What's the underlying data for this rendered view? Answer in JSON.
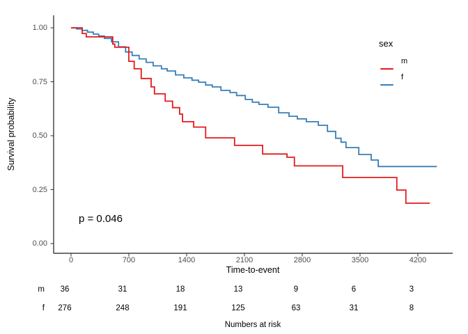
{
  "chart_data": {
    "type": "line",
    "subtype": "kaplan-meier-step",
    "title": "",
    "xlabel": "Time-to-event",
    "ylabel": "Survival probability",
    "x_ticks": [
      0,
      700,
      1400,
      2100,
      2800,
      3500,
      4200
    ],
    "y_ticks": [
      {
        "value": 1.0,
        "label": "1.00"
      },
      {
        "value": 0.75,
        "label": "0.75"
      },
      {
        "value": 0.5,
        "label": "0.50"
      },
      {
        "value": 0.25,
        "label": "0.25"
      },
      {
        "value": 0.0,
        "label": "0.00"
      }
    ],
    "xlim": [
      0,
      4600
    ],
    "ylim": [
      0,
      1
    ],
    "grid": false,
    "annotation": "p = 0.046",
    "legend": {
      "title": "sex",
      "position": "right",
      "entries": [
        {
          "label": "m",
          "color": "#E41A1C"
        },
        {
          "label": "f",
          "color": "#377EB8"
        }
      ]
    },
    "series": [
      {
        "name": "m",
        "color": "#E41A1C",
        "steps": [
          [
            0,
            1.0
          ],
          [
            135,
            0.974
          ],
          [
            185,
            0.958
          ],
          [
            505,
            0.925
          ],
          [
            530,
            0.91
          ],
          [
            700,
            0.845
          ],
          [
            765,
            0.81
          ],
          [
            850,
            0.765
          ],
          [
            970,
            0.726
          ],
          [
            1010,
            0.694
          ],
          [
            1140,
            0.66
          ],
          [
            1230,
            0.63
          ],
          [
            1315,
            0.6
          ],
          [
            1350,
            0.565
          ],
          [
            1485,
            0.54
          ],
          [
            1630,
            0.49
          ],
          [
            1980,
            0.455
          ],
          [
            2320,
            0.415
          ],
          [
            2615,
            0.4
          ],
          [
            2705,
            0.36
          ],
          [
            3290,
            0.306
          ],
          [
            3945,
            0.248
          ],
          [
            4055,
            0.187
          ],
          [
            4345,
            0.187
          ]
        ]
      },
      {
        "name": "f",
        "color": "#377EB8",
        "steps": [
          [
            0,
            1.0
          ],
          [
            67,
            0.995
          ],
          [
            135,
            0.988
          ],
          [
            200,
            0.98
          ],
          [
            270,
            0.971
          ],
          [
            335,
            0.962
          ],
          [
            405,
            0.951
          ],
          [
            490,
            0.935
          ],
          [
            575,
            0.912
          ],
          [
            660,
            0.888
          ],
          [
            740,
            0.872
          ],
          [
            825,
            0.856
          ],
          [
            910,
            0.84
          ],
          [
            995,
            0.824
          ],
          [
            1095,
            0.81
          ],
          [
            1165,
            0.8
          ],
          [
            1265,
            0.782
          ],
          [
            1365,
            0.768
          ],
          [
            1465,
            0.757
          ],
          [
            1545,
            0.748
          ],
          [
            1630,
            0.735
          ],
          [
            1710,
            0.726
          ],
          [
            1815,
            0.71
          ],
          [
            1925,
            0.7
          ],
          [
            2005,
            0.686
          ],
          [
            2110,
            0.668
          ],
          [
            2195,
            0.655
          ],
          [
            2275,
            0.645
          ],
          [
            2385,
            0.632
          ],
          [
            2515,
            0.606
          ],
          [
            2640,
            0.59
          ],
          [
            2740,
            0.578
          ],
          [
            2850,
            0.565
          ],
          [
            2995,
            0.548
          ],
          [
            3105,
            0.52
          ],
          [
            3205,
            0.488
          ],
          [
            3270,
            0.47
          ],
          [
            3330,
            0.445
          ],
          [
            3485,
            0.413
          ],
          [
            3635,
            0.387
          ],
          [
            3720,
            0.357
          ],
          [
            4430,
            0.357
          ]
        ]
      }
    ],
    "risk_table": {
      "caption": "Numbers at risk",
      "time_points": [
        0,
        700,
        1400,
        2100,
        2800,
        3500,
        4200
      ],
      "rows": [
        {
          "label": "m",
          "counts": [
            36,
            31,
            18,
            13,
            9,
            6,
            3
          ]
        },
        {
          "label": "f",
          "counts": [
            276,
            248,
            191,
            125,
            63,
            31,
            8
          ]
        }
      ]
    }
  }
}
